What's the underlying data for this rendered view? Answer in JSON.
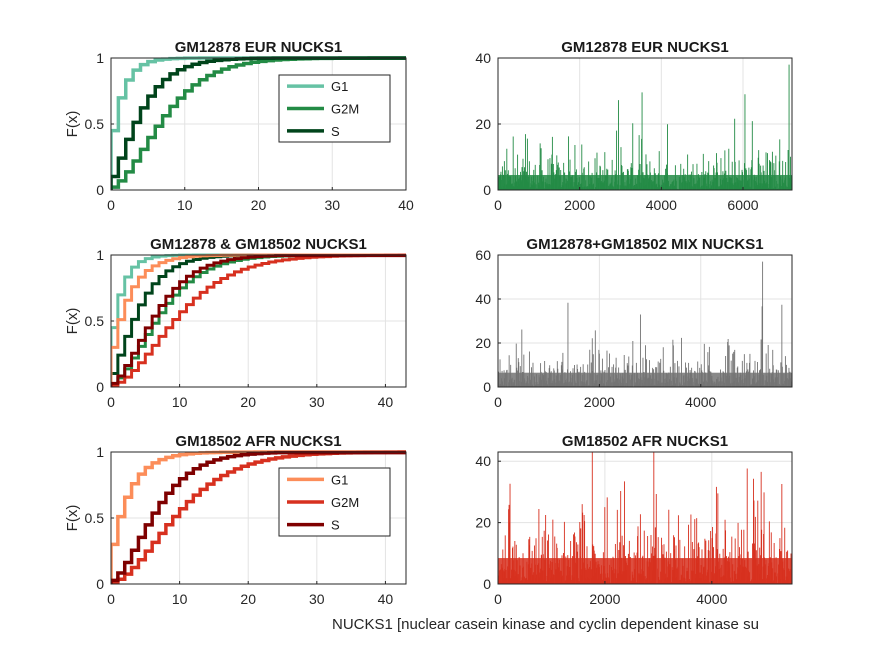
{
  "figure": {
    "xlabel": "NUCKS1 [nuclear casein kinase and cyclin dependent kinase su"
  },
  "chart_data": [
    {
      "id": "p1",
      "type": "line",
      "title": "GM12878 EUR NUCKS1",
      "ylabel": "F(x)",
      "xlim": [
        0,
        40
      ],
      "ylim": [
        0,
        1
      ],
      "xticks": [
        0,
        10,
        20,
        30,
        40
      ],
      "yticks": [
        0,
        0.5,
        1
      ],
      "grid": true,
      "legend": "top-right",
      "series": [
        {
          "name": "G1",
          "color": "#66c2a4",
          "width": 3.5,
          "cdf": {
            "type": "geom",
            "p": 0.45,
            "max": 22
          }
        },
        {
          "name": "G2M",
          "color": "#238b45",
          "width": 3.5,
          "cdf": {
            "type": "nb",
            "r": 3,
            "p": 0.28,
            "max": 38
          }
        },
        {
          "name": "S",
          "color": "#00441b",
          "width": 3.5,
          "cdf": {
            "type": "nb",
            "r": 2,
            "p": 0.32,
            "max": 23
          }
        }
      ]
    },
    {
      "id": "p2",
      "type": "bar",
      "title": "GM12878 EUR NUCKS1",
      "xlim": [
        0,
        7200
      ],
      "ylim": [
        0,
        40
      ],
      "xticks": [
        0,
        2000,
        4000,
        6000
      ],
      "yticks": [
        0,
        20,
        40
      ],
      "grid": true,
      "color": "#238b45",
      "n": 7200,
      "mean": 3.5,
      "peak": 38
    },
    {
      "id": "p3",
      "type": "line",
      "title": "GM12878 & GM18502 NUCKS1",
      "ylabel": "F(x)",
      "xlim": [
        0,
        43
      ],
      "ylim": [
        0,
        1
      ],
      "xticks": [
        0,
        10,
        20,
        30,
        40
      ],
      "yticks": [
        0,
        0.5,
        1
      ],
      "grid": true,
      "series": [
        {
          "color": "#66c2a4",
          "width": 3,
          "cdf": {
            "type": "geom",
            "p": 0.45,
            "max": 22
          }
        },
        {
          "color": "#238b45",
          "width": 3,
          "cdf": {
            "type": "nb",
            "r": 3,
            "p": 0.28,
            "max": 38
          }
        },
        {
          "color": "#00441b",
          "width": 3,
          "cdf": {
            "type": "nb",
            "r": 2,
            "p": 0.32,
            "max": 23
          }
        },
        {
          "color": "#fc8d59",
          "width": 3,
          "cdf": {
            "type": "geom",
            "p": 0.3,
            "max": 22
          }
        },
        {
          "color": "#d7301f",
          "width": 3,
          "cdf": {
            "type": "nb",
            "r": 3,
            "p": 0.22,
            "max": 43
          }
        },
        {
          "color": "#7f0000",
          "width": 3,
          "cdf": {
            "type": "nb",
            "r": 3,
            "p": 0.3,
            "max": 24
          }
        }
      ]
    },
    {
      "id": "p4",
      "type": "bar",
      "title": "GM12878+GM18502 MIX NUCKS1",
      "xlim": [
        0,
        5800
      ],
      "ylim": [
        0,
        60
      ],
      "xticks": [
        0,
        2000,
        4000
      ],
      "yticks": [
        0,
        20,
        40,
        60
      ],
      "grid": true,
      "color": "#737373",
      "n": 5800,
      "mean": 5,
      "peak": 57
    },
    {
      "id": "p5",
      "type": "line",
      "title": "GM18502 AFR NUCKS1",
      "ylabel": "F(x)",
      "xlim": [
        0,
        43
      ],
      "ylim": [
        0,
        1
      ],
      "xticks": [
        0,
        10,
        20,
        30,
        40
      ],
      "yticks": [
        0,
        0.5,
        1
      ],
      "grid": true,
      "legend": "top-right",
      "series": [
        {
          "name": "G1",
          "color": "#fc8d59",
          "width": 3.5,
          "cdf": {
            "type": "geom",
            "p": 0.3,
            "max": 22
          }
        },
        {
          "name": "G2M",
          "color": "#d7301f",
          "width": 3.5,
          "cdf": {
            "type": "nb",
            "r": 3,
            "p": 0.22,
            "max": 43
          }
        },
        {
          "name": "S",
          "color": "#7f0000",
          "width": 3.5,
          "cdf": {
            "type": "nb",
            "r": 3,
            "p": 0.3,
            "max": 24
          }
        }
      ]
    },
    {
      "id": "p6",
      "type": "bar",
      "title": "GM18502 AFR NUCKS1",
      "xlim": [
        0,
        5500
      ],
      "ylim": [
        0,
        43
      ],
      "xticks": [
        0,
        2000,
        4000
      ],
      "yticks": [
        0,
        20,
        40
      ],
      "grid": true,
      "color": "#d7301f",
      "n": 5500,
      "mean": 6.5,
      "peak": 43
    }
  ]
}
